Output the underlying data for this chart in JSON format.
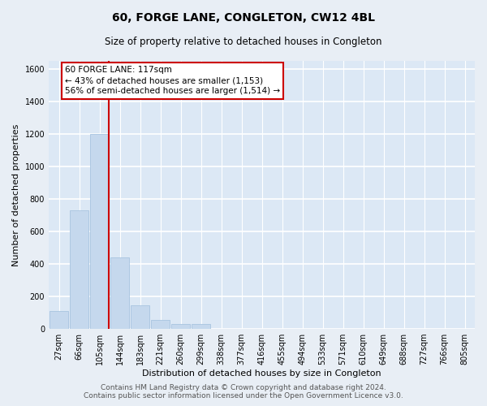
{
  "title": "60, FORGE LANE, CONGLETON, CW12 4BL",
  "subtitle": "Size of property relative to detached houses in Congleton",
  "xlabel": "Distribution of detached houses by size in Congleton",
  "ylabel": "Number of detached properties",
  "bar_labels": [
    "27sqm",
    "66sqm",
    "105sqm",
    "144sqm",
    "183sqm",
    "221sqm",
    "260sqm",
    "299sqm",
    "338sqm",
    "377sqm",
    "416sqm",
    "455sqm",
    "494sqm",
    "533sqm",
    "571sqm",
    "610sqm",
    "649sqm",
    "688sqm",
    "727sqm",
    "766sqm",
    "805sqm"
  ],
  "bar_values": [
    110,
    730,
    1200,
    440,
    145,
    55,
    30,
    30,
    0,
    0,
    0,
    0,
    0,
    0,
    0,
    0,
    0,
    0,
    0,
    0,
    0
  ],
  "bar_color": "#c5d8ed",
  "bar_edge_color": "#a8c4e0",
  "vline_x": 2,
  "vline_color": "#cc0000",
  "ylim": [
    0,
    1650
  ],
  "yticks": [
    0,
    200,
    400,
    600,
    800,
    1000,
    1200,
    1400,
    1600
  ],
  "annotation_title": "60 FORGE LANE: 117sqm",
  "annotation_line1": "← 43% of detached houses are smaller (1,153)",
  "annotation_line2": "56% of semi-detached houses are larger (1,514) →",
  "annotation_box_color": "#ffffff",
  "annotation_box_edge": "#cc0000",
  "footer_line1": "Contains HM Land Registry data © Crown copyright and database right 2024.",
  "footer_line2": "Contains public sector information licensed under the Open Government Licence v3.0.",
  "bg_color": "#e8eef5",
  "plot_bg_color": "#dce8f5",
  "grid_color": "#ffffff",
  "title_fontsize": 10,
  "subtitle_fontsize": 8.5,
  "axis_label_fontsize": 8,
  "tick_fontsize": 7,
  "footer_fontsize": 6.5
}
